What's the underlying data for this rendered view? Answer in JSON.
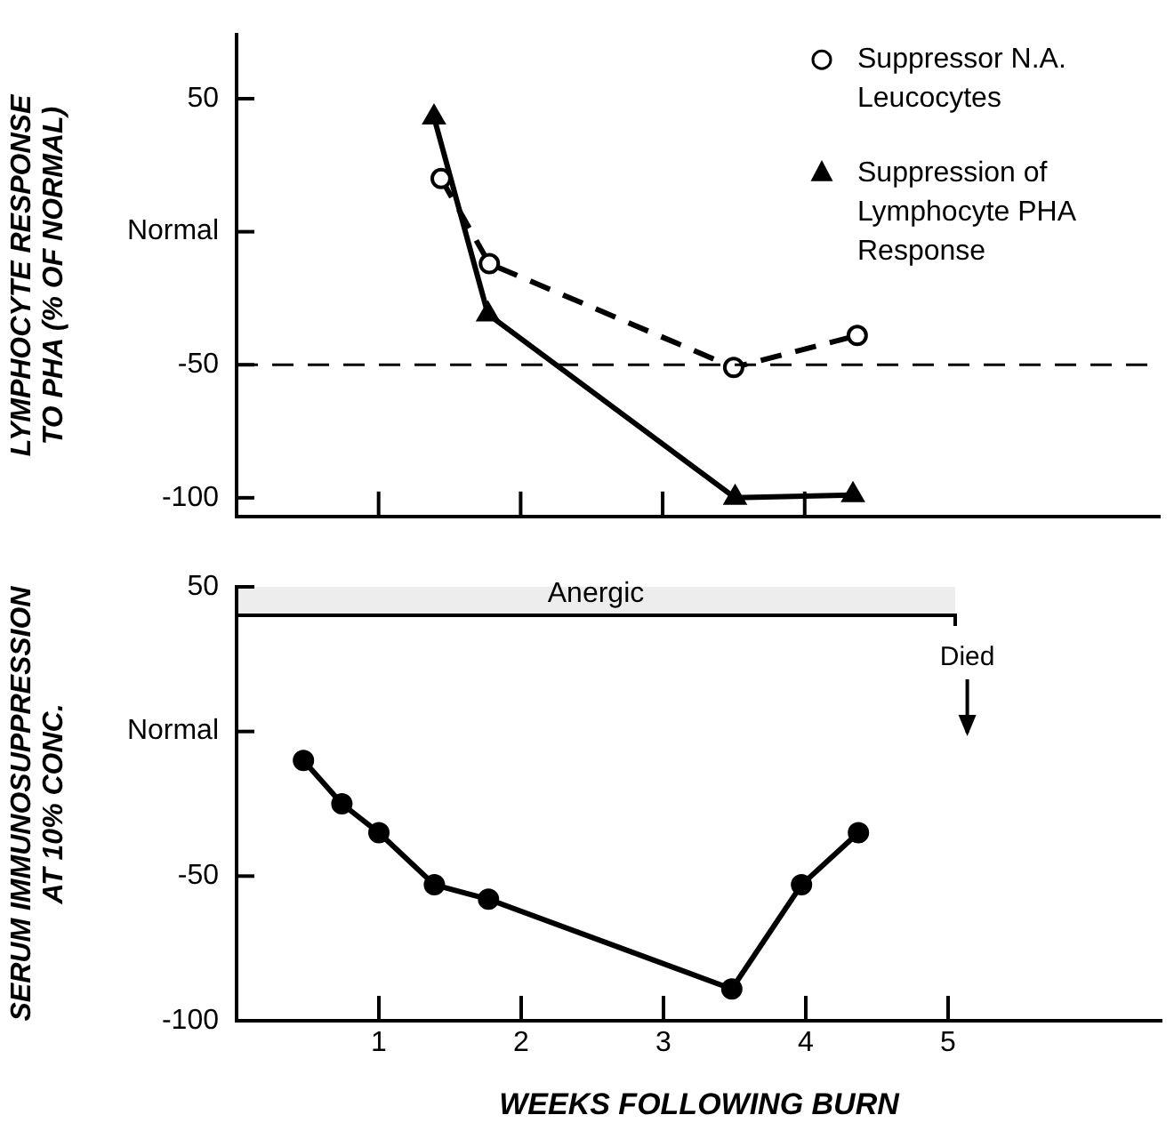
{
  "chart_data": [
    {
      "type": "line",
      "ylabel": "LYMPHOCYTE RESPONSE\nTO PHA (% OF NORMAL)",
      "xlim": [
        0,
        6.5
      ],
      "xticks": [
        {
          "value": 1,
          "label": null
        },
        {
          "value": 2,
          "label": null
        },
        {
          "value": 3,
          "label": null
        },
        {
          "value": 4,
          "label": null
        }
      ],
      "ylim": [
        -107,
        74
      ],
      "yticks": [
        50,
        {
          "value": 0,
          "label": "Normal"
        },
        -50,
        -100
      ],
      "tick_labels": "y",
      "legend": "top right",
      "series": [
        {
          "name": "Suppressor N.A. Leucocytes",
          "color": "#000000",
          "marker": "circle",
          "line_style": "dashed",
          "x": [
            1.44,
            1.78,
            3.5,
            4.37
          ],
          "values": [
            20,
            -12,
            -51,
            -39
          ]
        },
        {
          "name": "Suppression of Lymphocyte PHA Response",
          "color": "#000000",
          "marker": "triangle",
          "line_style": "solid",
          "x": [
            1.39,
            1.77,
            3.51,
            4.34
          ],
          "values": [
            43,
            -31,
            -100,
            -99
          ]
        }
      ],
      "ref_lines": [
        {
          "axis": "y",
          "value": -50,
          "line_style": "dashed",
          "color": "#000000"
        }
      ]
    },
    {
      "type": "line",
      "ylabel": "SERUM IMMUNOSUPPRESSION\nAT 10% CONC.",
      "xlabel": "WEEKS FOLLOWING BURN",
      "xlim": [
        0,
        6.5
      ],
      "xticks": [
        1,
        2,
        3,
        4,
        5
      ],
      "ylim": [
        -100,
        50
      ],
      "yticks": [
        50,
        {
          "value": 0,
          "label": "Normal"
        },
        -50,
        -100
      ],
      "series": [
        {
          "color": "#000000",
          "marker": "circle",
          "line_style": "solid",
          "x": [
            0.47,
            0.74,
            1.0,
            1.39,
            1.77,
            3.48,
            3.97,
            4.37
          ],
          "values": [
            -10,
            -25,
            -35,
            -53,
            -58,
            -89,
            -53,
            -35
          ]
        }
      ],
      "bands": [
        {
          "axis": "x",
          "from": 0,
          "to": 5.05,
          "label": "Anergic",
          "color": "#000000"
        }
      ],
      "annotations": [
        "Died"
      ]
    }
  ]
}
